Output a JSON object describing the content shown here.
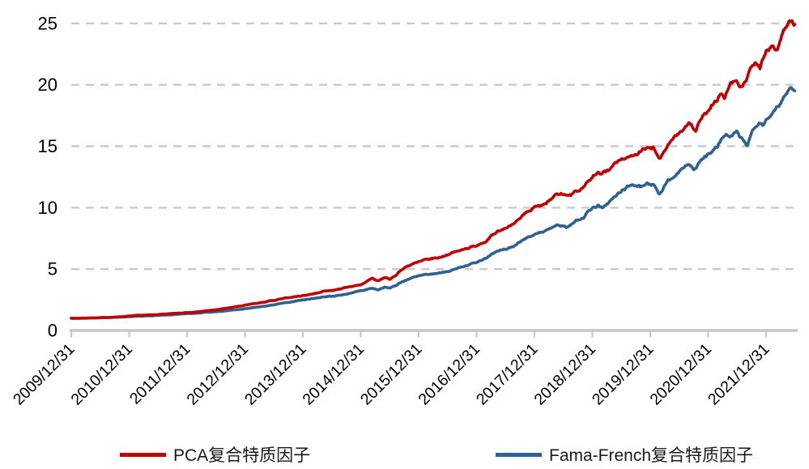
{
  "chart_data": {
    "type": "line",
    "title": "",
    "xlabel": "",
    "ylabel": "",
    "x_axis": {
      "labels": [
        "2009/12/31",
        "2010/12/31",
        "2011/12/31",
        "2012/12/31",
        "2013/12/31",
        "2014/12/31",
        "2015/12/31",
        "2016/12/31",
        "2017/12/31",
        "2018/12/31",
        "2019/12/31",
        "2020/12/31",
        "2021/12/31"
      ],
      "label_rotation_deg": 45,
      "range_years_after_first_label": [
        0,
        12.5
      ]
    },
    "y_axis": {
      "min": 0,
      "max": 25,
      "ticks": [
        0,
        5,
        10,
        15,
        20,
        25
      ]
    },
    "grid": "horizontal-dashed",
    "grid_color": "#c9c9c9",
    "axis_color": "#c6c6c6",
    "text_color": "#000000",
    "legend_position": "bottom-center",
    "points_unit": "x = years after 2009/12/31, y = cumulative net value (estimated from pixels)",
    "series": [
      {
        "name": "PCA复合特质因子",
        "color": "#c00000",
        "points": [
          [
            0,
            1.0
          ],
          [
            0.25,
            1.02
          ],
          [
            0.5,
            1.05
          ],
          [
            0.75,
            1.1
          ],
          [
            1,
            1.17
          ],
          [
            1.25,
            1.24
          ],
          [
            1.5,
            1.3
          ],
          [
            1.75,
            1.37
          ],
          [
            2,
            1.45
          ],
          [
            2.25,
            1.55
          ],
          [
            2.5,
            1.68
          ],
          [
            2.75,
            1.85
          ],
          [
            3,
            2.05
          ],
          [
            3.25,
            2.25
          ],
          [
            3.5,
            2.45
          ],
          [
            3.75,
            2.65
          ],
          [
            4,
            2.85
          ],
          [
            4.25,
            3.05
          ],
          [
            4.4,
            3.25
          ],
          [
            4.6,
            3.35
          ],
          [
            4.8,
            3.55
          ],
          [
            5,
            3.7
          ],
          [
            5.1,
            4.0
          ],
          [
            5.2,
            4.25
          ],
          [
            5.3,
            4.05
          ],
          [
            5.42,
            4.3
          ],
          [
            5.5,
            4.2
          ],
          [
            5.6,
            4.45
          ],
          [
            5.7,
            4.95
          ],
          [
            5.8,
            5.2
          ],
          [
            5.9,
            5.4
          ],
          [
            6,
            5.55
          ],
          [
            6.15,
            5.75
          ],
          [
            6.3,
            5.9
          ],
          [
            6.5,
            6.2
          ],
          [
            6.75,
            6.55
          ],
          [
            7,
            6.95
          ],
          [
            7.2,
            7.5
          ],
          [
            7.4,
            8.1
          ],
          [
            7.6,
            8.6
          ],
          [
            7.8,
            9.3
          ],
          [
            8,
            9.9
          ],
          [
            8.2,
            10.3
          ],
          [
            8.35,
            11.0
          ],
          [
            8.5,
            11.1
          ],
          [
            8.65,
            11.2
          ],
          [
            8.8,
            11.6
          ],
          [
            9,
            12.45
          ],
          [
            9.08,
            12.85
          ],
          [
            9.15,
            12.6
          ],
          [
            9.3,
            13.15
          ],
          [
            9.45,
            13.75
          ],
          [
            9.6,
            14.0
          ],
          [
            9.75,
            14.3
          ],
          [
            9.9,
            14.65
          ],
          [
            10,
            14.75
          ],
          [
            10.05,
            14.9
          ],
          [
            10.16,
            13.8
          ],
          [
            10.3,
            15.0
          ],
          [
            10.42,
            15.8
          ],
          [
            10.55,
            16.3
          ],
          [
            10.68,
            17.0
          ],
          [
            10.78,
            16.4
          ],
          [
            10.9,
            17.4
          ],
          [
            11,
            17.9
          ],
          [
            11.1,
            18.6
          ],
          [
            11.2,
            19.3
          ],
          [
            11.28,
            19.0
          ],
          [
            11.38,
            19.9
          ],
          [
            11.48,
            20.1
          ],
          [
            11.58,
            19.6
          ],
          [
            11.7,
            20.9
          ],
          [
            11.82,
            22.0
          ],
          [
            11.9,
            21.4
          ],
          [
            12,
            22.7
          ],
          [
            12.1,
            23.3
          ],
          [
            12.18,
            22.8
          ],
          [
            12.3,
            24.3
          ],
          [
            12.42,
            25.35
          ],
          [
            12.5,
            25.15
          ]
        ]
      },
      {
        "name": "Fama-French复合特质因子",
        "color": "#2e6293",
        "points": [
          [
            0,
            1.0
          ],
          [
            0.25,
            1.01
          ],
          [
            0.5,
            1.03
          ],
          [
            0.75,
            1.07
          ],
          [
            1,
            1.12
          ],
          [
            1.25,
            1.17
          ],
          [
            1.5,
            1.22
          ],
          [
            1.75,
            1.28
          ],
          [
            2,
            1.36
          ],
          [
            2.25,
            1.44
          ],
          [
            2.5,
            1.53
          ],
          [
            2.75,
            1.63
          ],
          [
            3,
            1.76
          ],
          [
            3.25,
            1.9
          ],
          [
            3.5,
            2.1
          ],
          [
            3.75,
            2.3
          ],
          [
            4,
            2.5
          ],
          [
            4.25,
            2.65
          ],
          [
            4.5,
            2.8
          ],
          [
            4.75,
            2.95
          ],
          [
            5,
            3.2
          ],
          [
            5.1,
            3.35
          ],
          [
            5.2,
            3.45
          ],
          [
            5.3,
            3.3
          ],
          [
            5.42,
            3.5
          ],
          [
            5.5,
            3.45
          ],
          [
            5.6,
            3.6
          ],
          [
            5.7,
            3.95
          ],
          [
            5.8,
            4.15
          ],
          [
            5.9,
            4.3
          ],
          [
            6,
            4.4
          ],
          [
            6.2,
            4.6
          ],
          [
            6.4,
            4.75
          ],
          [
            6.6,
            4.95
          ],
          [
            6.8,
            5.3
          ],
          [
            7,
            5.6
          ],
          [
            7.2,
            6.0
          ],
          [
            7.4,
            6.4
          ],
          [
            7.6,
            6.8
          ],
          [
            7.8,
            7.3
          ],
          [
            8,
            7.8
          ],
          [
            8.2,
            8.15
          ],
          [
            8.4,
            8.5
          ],
          [
            8.55,
            8.45
          ],
          [
            8.7,
            8.8
          ],
          [
            8.85,
            9.3
          ],
          [
            9,
            10.1
          ],
          [
            9.1,
            10.3
          ],
          [
            9.18,
            10.1
          ],
          [
            9.3,
            10.5
          ],
          [
            9.45,
            11.2
          ],
          [
            9.6,
            11.65
          ],
          [
            9.75,
            11.8
          ],
          [
            9.9,
            11.7
          ],
          [
            10,
            11.8
          ],
          [
            10.07,
            11.9
          ],
          [
            10.16,
            11.0
          ],
          [
            10.3,
            12.1
          ],
          [
            10.42,
            12.5
          ],
          [
            10.55,
            13.2
          ],
          [
            10.65,
            13.3
          ],
          [
            10.75,
            13.1
          ],
          [
            10.9,
            13.9
          ],
          [
            11,
            14.3
          ],
          [
            11.1,
            14.9
          ],
          [
            11.2,
            15.5
          ],
          [
            11.3,
            16.1
          ],
          [
            11.4,
            15.8
          ],
          [
            11.5,
            16.0
          ],
          [
            11.6,
            15.4
          ],
          [
            11.68,
            15.1
          ],
          [
            11.78,
            16.5
          ],
          [
            11.88,
            16.9
          ],
          [
            11.95,
            16.7
          ],
          [
            12.05,
            17.5
          ],
          [
            12.12,
            17.9
          ],
          [
            12.2,
            18.2
          ],
          [
            12.3,
            19.0
          ],
          [
            12.42,
            19.85
          ],
          [
            12.5,
            19.6
          ]
        ]
      }
    ]
  }
}
